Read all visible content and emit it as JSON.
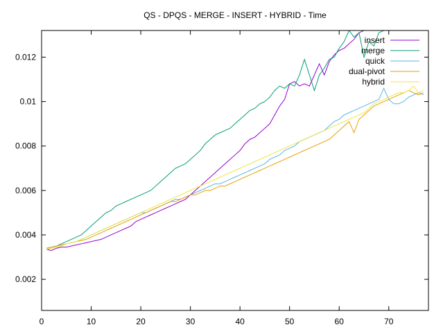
{
  "chart_data": {
    "type": "line",
    "title": "QS - DPQS - MERGE - INSERT - HYBRID - Time",
    "xlabel": "",
    "ylabel": "",
    "xlim": [
      0,
      78
    ],
    "ylim": [
      0.0006,
      0.0132
    ],
    "xticks": [
      0,
      10,
      20,
      30,
      40,
      50,
      60,
      70
    ],
    "yticks": [
      0.002,
      0.004,
      0.006,
      0.008,
      0.01,
      0.012
    ],
    "ytick_labels": [
      "0.002",
      "0.004",
      "0.006",
      "0.008",
      "0.01",
      "0.012"
    ],
    "xtick_labels": [
      "0",
      "10",
      "20",
      "30",
      "40",
      "50",
      "60",
      "70"
    ],
    "grid": false,
    "legend_position": "top-right",
    "series": [
      {
        "name": "insert",
        "color": "#9400d3",
        "x": [
          1,
          2,
          3,
          4,
          5,
          6,
          7,
          8,
          9,
          10,
          11,
          12,
          13,
          14,
          15,
          16,
          17,
          18,
          19,
          20,
          21,
          22,
          23,
          24,
          25,
          26,
          27,
          28,
          29,
          30,
          31,
          32,
          33,
          34,
          35,
          36,
          37,
          38,
          39,
          40,
          41,
          42,
          43,
          44,
          45,
          46,
          47,
          48,
          49,
          50,
          51,
          52,
          53,
          54,
          55,
          56,
          57,
          58,
          59,
          60,
          61,
          62,
          63,
          64,
          65,
          66,
          67,
          68,
          69
        ],
        "y": [
          0.00335,
          0.0033,
          0.0034,
          0.00345,
          0.00345,
          0.0035,
          0.00355,
          0.0036,
          0.00365,
          0.0037,
          0.00375,
          0.0038,
          0.0039,
          0.004,
          0.0041,
          0.0042,
          0.0043,
          0.0044,
          0.0046,
          0.0047,
          0.0048,
          0.0049,
          0.005,
          0.0051,
          0.0052,
          0.0053,
          0.0054,
          0.0055,
          0.0056,
          0.0058,
          0.006,
          0.0062,
          0.0064,
          0.0066,
          0.0068,
          0.007,
          0.0072,
          0.0074,
          0.0076,
          0.0078,
          0.0081,
          0.0083,
          0.0084,
          0.0086,
          0.0088,
          0.009,
          0.0094,
          0.0098,
          0.0101,
          0.0108,
          0.0109,
          0.0107,
          0.0108,
          0.0107,
          0.0112,
          0.0117,
          0.0112,
          0.0118,
          0.0121,
          0.0123,
          0.0124,
          0.0126,
          0.0128,
          0.0131,
          0.0132,
          0.0132,
          0.0132,
          0.0132,
          0.0132
        ]
      },
      {
        "name": "merge",
        "color": "#009e73",
        "x": [
          1,
          2,
          3,
          4,
          5,
          6,
          7,
          8,
          9,
          10,
          11,
          12,
          13,
          14,
          15,
          16,
          17,
          18,
          19,
          20,
          21,
          22,
          23,
          24,
          25,
          26,
          27,
          28,
          29,
          30,
          31,
          32,
          33,
          34,
          35,
          36,
          37,
          38,
          39,
          40,
          41,
          42,
          43,
          44,
          45,
          46,
          47,
          48,
          49,
          50,
          51,
          52,
          53,
          54,
          55,
          56,
          57,
          58,
          59,
          60,
          61,
          62,
          63,
          64,
          65,
          66,
          67,
          68,
          69
        ],
        "y": [
          0.0034,
          0.00345,
          0.0035,
          0.0036,
          0.0037,
          0.0038,
          0.0039,
          0.004,
          0.0042,
          0.0044,
          0.0046,
          0.0048,
          0.005,
          0.0051,
          0.0053,
          0.0054,
          0.0055,
          0.0056,
          0.0057,
          0.0058,
          0.0059,
          0.006,
          0.0062,
          0.0064,
          0.0066,
          0.0068,
          0.007,
          0.0071,
          0.0072,
          0.0074,
          0.0076,
          0.0078,
          0.0081,
          0.0083,
          0.0085,
          0.0086,
          0.0087,
          0.0088,
          0.009,
          0.0092,
          0.0094,
          0.0096,
          0.0097,
          0.0099,
          0.01,
          0.0102,
          0.0105,
          0.0107,
          0.0106,
          0.0108,
          0.0107,
          0.0112,
          0.0119,
          0.0112,
          0.0105,
          0.0112,
          0.0115,
          0.0119,
          0.012,
          0.0124,
          0.0127,
          0.0132,
          0.0129,
          0.0131,
          0.012,
          0.0127,
          0.0125,
          0.0131,
          0.0132
        ]
      },
      {
        "name": "quick",
        "color": "#56b4e9",
        "x": [
          1,
          2,
          3,
          4,
          5,
          6,
          7,
          8,
          9,
          10,
          11,
          12,
          13,
          14,
          15,
          16,
          17,
          18,
          19,
          20,
          21,
          22,
          23,
          24,
          25,
          26,
          27,
          28,
          29,
          30,
          31,
          32,
          33,
          34,
          35,
          36,
          37,
          38,
          39,
          40,
          41,
          42,
          43,
          44,
          45,
          46,
          47,
          48,
          49,
          50,
          51,
          52,
          53,
          54,
          55,
          56,
          57,
          58,
          59,
          60,
          61,
          62,
          63,
          64,
          65,
          66,
          67,
          68,
          69,
          70,
          71,
          72,
          73,
          74,
          75,
          76,
          77
        ],
        "y": [
          0.00335,
          0.0034,
          0.00345,
          0.0035,
          0.0036,
          0.00365,
          0.0037,
          0.0038,
          0.0039,
          0.004,
          0.0041,
          0.0042,
          0.0043,
          0.0044,
          0.0045,
          0.0046,
          0.0047,
          0.0048,
          0.0049,
          0.005,
          0.005,
          0.0051,
          0.0052,
          0.0053,
          0.0054,
          0.0055,
          0.0056,
          0.0056,
          0.0057,
          0.0058,
          0.0059,
          0.006,
          0.0061,
          0.0062,
          0.0063,
          0.0063,
          0.0064,
          0.0065,
          0.0066,
          0.0067,
          0.0068,
          0.0069,
          0.007,
          0.0071,
          0.0072,
          0.0074,
          0.0075,
          0.0076,
          0.0078,
          0.0079,
          0.008,
          0.0082,
          0.0083,
          0.0084,
          0.0085,
          0.0086,
          0.0087,
          0.0089,
          0.0091,
          0.0092,
          0.0094,
          0.0095,
          0.0096,
          0.0097,
          0.0098,
          0.0099,
          0.01,
          0.0101,
          0.0106,
          0.0101,
          0.0099,
          0.0099,
          0.01,
          0.0102,
          0.0103,
          0.0104,
          0.0103
        ]
      },
      {
        "name": "dual-pivot",
        "color": "#e69f00",
        "x": [
          1,
          2,
          3,
          4,
          5,
          6,
          7,
          8,
          9,
          10,
          11,
          12,
          13,
          14,
          15,
          16,
          17,
          18,
          19,
          20,
          21,
          22,
          23,
          24,
          25,
          26,
          27,
          28,
          29,
          30,
          31,
          32,
          33,
          34,
          35,
          36,
          37,
          38,
          39,
          40,
          41,
          42,
          43,
          44,
          45,
          46,
          47,
          48,
          49,
          50,
          51,
          52,
          53,
          54,
          55,
          56,
          57,
          58,
          59,
          60,
          61,
          62,
          63,
          64,
          65,
          66,
          67,
          68,
          69,
          70,
          71,
          72,
          73,
          74,
          75,
          76,
          77
        ],
        "y": [
          0.0034,
          0.00345,
          0.0035,
          0.00355,
          0.0036,
          0.00365,
          0.0037,
          0.00375,
          0.0038,
          0.0039,
          0.004,
          0.0041,
          0.0042,
          0.0043,
          0.0044,
          0.0045,
          0.0046,
          0.0047,
          0.0048,
          0.0049,
          0.005,
          0.0051,
          0.0052,
          0.0053,
          0.0054,
          0.0055,
          0.0055,
          0.0056,
          0.0057,
          0.0058,
          0.0058,
          0.0059,
          0.006,
          0.006,
          0.0061,
          0.0062,
          0.0062,
          0.0063,
          0.0064,
          0.0065,
          0.0066,
          0.0067,
          0.0068,
          0.0069,
          0.007,
          0.0071,
          0.0072,
          0.0073,
          0.0074,
          0.0075,
          0.0076,
          0.0077,
          0.0078,
          0.0079,
          0.008,
          0.0081,
          0.0082,
          0.0083,
          0.0085,
          0.0087,
          0.0089,
          0.0091,
          0.0086,
          0.0092,
          0.0094,
          0.0096,
          0.0098,
          0.0099,
          0.01,
          0.0101,
          0.0102,
          0.0103,
          0.0104,
          0.0105,
          0.0104,
          0.0103,
          0.0104
        ]
      },
      {
        "name": "hybrid",
        "color": "#f0e442",
        "x": [
          1,
          2,
          3,
          4,
          5,
          6,
          7,
          8,
          9,
          10,
          11,
          12,
          13,
          14,
          15,
          16,
          17,
          18,
          19,
          20,
          21,
          22,
          23,
          24,
          25,
          26,
          27,
          28,
          29,
          30,
          31,
          32,
          33,
          34,
          35,
          36,
          37,
          38,
          39,
          40,
          41,
          42,
          43,
          44,
          45,
          46,
          47,
          48,
          49,
          50,
          51,
          52,
          53,
          54,
          55,
          56,
          57,
          58,
          59,
          60,
          61,
          62,
          63,
          64,
          65,
          66,
          67,
          68,
          69,
          70,
          71,
          72,
          73,
          74,
          75,
          76,
          77
        ],
        "y": [
          0.00335,
          0.0034,
          0.00345,
          0.0035,
          0.0036,
          0.00365,
          0.0037,
          0.0038,
          0.0039,
          0.004,
          0.0041,
          0.0042,
          0.0043,
          0.0044,
          0.0045,
          0.0046,
          0.0047,
          0.0048,
          0.0049,
          0.005,
          0.0051,
          0.0052,
          0.0053,
          0.0054,
          0.0055,
          0.0056,
          0.0057,
          0.0058,
          0.0059,
          0.006,
          0.0061,
          0.0062,
          0.0063,
          0.0064,
          0.0065,
          0.0066,
          0.0067,
          0.0068,
          0.0069,
          0.007,
          0.0071,
          0.0072,
          0.0073,
          0.0074,
          0.0075,
          0.0076,
          0.0077,
          0.0078,
          0.0079,
          0.008,
          0.0081,
          0.0082,
          0.0083,
          0.0084,
          0.0085,
          0.0086,
          0.0087,
          0.0088,
          0.0089,
          0.009,
          0.0091,
          0.0092,
          0.0093,
          0.0094,
          0.0095,
          0.0097,
          0.0099,
          0.01,
          0.0101,
          0.0102,
          0.0103,
          0.0104,
          0.0104,
          0.0105,
          0.0107,
          0.0104,
          0.0105
        ]
      }
    ]
  }
}
